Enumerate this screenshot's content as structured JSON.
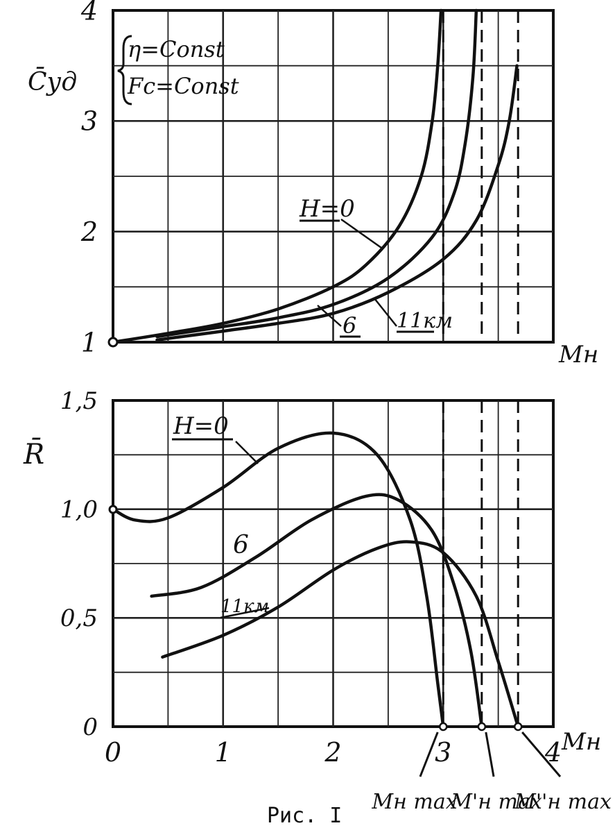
{
  "figure": {
    "caption": "Рис. I"
  },
  "chart_data": [
    {
      "type": "line",
      "ylabel": "C̄уд",
      "xlabel": "Mн",
      "xlim": [
        0,
        4
      ],
      "ylim": [
        1,
        4
      ],
      "y_ticks": [
        "1",
        "2",
        "3",
        "4"
      ],
      "grid": true,
      "conditions": [
        "η=Const",
        "Fc=Const"
      ],
      "series": [
        {
          "name": "H=0",
          "points": [
            [
              0,
              1.0
            ],
            [
              0.5,
              1.08
            ],
            [
              1.0,
              1.17
            ],
            [
              1.5,
              1.3
            ],
            [
              2.0,
              1.5
            ],
            [
              2.3,
              1.7
            ],
            [
              2.6,
              2.05
            ],
            [
              2.8,
              2.5
            ],
            [
              2.9,
              3.0
            ],
            [
              2.95,
              3.5
            ],
            [
              2.98,
              4.0
            ]
          ]
        },
        {
          "name": "6",
          "points": [
            [
              0.4,
              1.05
            ],
            [
              1.0,
              1.14
            ],
            [
              1.5,
              1.22
            ],
            [
              2.0,
              1.34
            ],
            [
              2.5,
              1.58
            ],
            [
              2.9,
              1.95
            ],
            [
              3.1,
              2.35
            ],
            [
              3.2,
              2.8
            ],
            [
              3.27,
              3.4
            ],
            [
              3.3,
              4.0
            ]
          ]
        },
        {
          "name": "11км",
          "points": [
            [
              0.4,
              1.02
            ],
            [
              1.0,
              1.1
            ],
            [
              1.5,
              1.17
            ],
            [
              2.0,
              1.26
            ],
            [
              2.5,
              1.45
            ],
            [
              3.0,
              1.75
            ],
            [
              3.3,
              2.1
            ],
            [
              3.5,
              2.6
            ],
            [
              3.6,
              3.0
            ],
            [
              3.67,
              3.5
            ]
          ]
        }
      ],
      "curve_labels": [
        "H=0",
        "6",
        "11км"
      ]
    },
    {
      "type": "line",
      "ylabel": "R̄",
      "xlabel": "Mн",
      "xlim": [
        0,
        4
      ],
      "ylim": [
        0,
        1.5
      ],
      "x_ticks": [
        "0",
        "1",
        "2",
        "3",
        "4"
      ],
      "y_ticks": [
        "0",
        "0,5",
        "1,0",
        "1,5"
      ],
      "grid": true,
      "series": [
        {
          "name": "H=0",
          "points": [
            [
              0,
              1.0
            ],
            [
              0.2,
              0.95
            ],
            [
              0.5,
              0.96
            ],
            [
              1.0,
              1.1
            ],
            [
              1.5,
              1.28
            ],
            [
              2.0,
              1.35
            ],
            [
              2.4,
              1.25
            ],
            [
              2.7,
              0.95
            ],
            [
              2.85,
              0.6
            ],
            [
              2.95,
              0.2
            ],
            [
              3.0,
              0.0
            ]
          ]
        },
        {
          "name": "6",
          "points": [
            [
              0.35,
              0.6
            ],
            [
              0.8,
              0.64
            ],
            [
              1.3,
              0.78
            ],
            [
              1.8,
              0.95
            ],
            [
              2.3,
              1.06
            ],
            [
              2.6,
              1.04
            ],
            [
              2.9,
              0.9
            ],
            [
              3.1,
              0.65
            ],
            [
              3.25,
              0.35
            ],
            [
              3.35,
              0.0
            ]
          ]
        },
        {
          "name": "11км",
          "points": [
            [
              0.45,
              0.32
            ],
            [
              1.0,
              0.42
            ],
            [
              1.5,
              0.55
            ],
            [
              2.0,
              0.72
            ],
            [
              2.4,
              0.82
            ],
            [
              2.7,
              0.85
            ],
            [
              3.0,
              0.8
            ],
            [
              3.3,
              0.6
            ],
            [
              3.5,
              0.3
            ],
            [
              3.68,
              0.0
            ]
          ]
        }
      ],
      "curve_labels": [
        "H=0",
        "6",
        "11км"
      ],
      "x_markers": [
        {
          "label": "Mн max",
          "x": 3.0
        },
        {
          "label": "M'н max",
          "x": 3.35
        },
        {
          "label": "M''н max",
          "x": 3.68
        }
      ]
    }
  ]
}
